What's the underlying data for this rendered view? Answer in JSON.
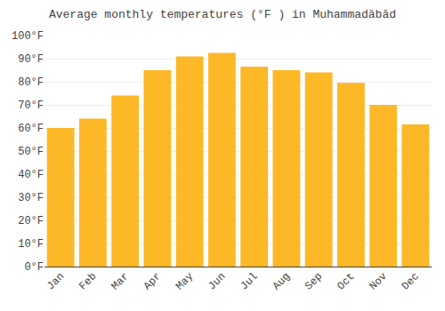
{
  "chart_data": {
    "type": "bar",
    "title": "Average monthly temperatures (°F ) in Muhammadābād",
    "categories": [
      "Jan",
      "Feb",
      "Mar",
      "Apr",
      "May",
      "Jun",
      "Jul",
      "Aug",
      "Sep",
      "Oct",
      "Nov",
      "Dec"
    ],
    "values": [
      60,
      64,
      74,
      85,
      91,
      92.5,
      86.5,
      85,
      84,
      79.5,
      70,
      61.5
    ],
    "color": "#FDB827",
    "ylim": [
      0,
      100
    ],
    "yticks": [
      {
        "value": 0,
        "label": "0°F"
      },
      {
        "value": 10,
        "label": "10°F"
      },
      {
        "value": 20,
        "label": "20°F"
      },
      {
        "value": 30,
        "label": "30°F"
      },
      {
        "value": 40,
        "label": "40°F"
      },
      {
        "value": 50,
        "label": "50°F"
      },
      {
        "value": 60,
        "label": "60°F"
      },
      {
        "value": 70,
        "label": "70°F"
      },
      {
        "value": 80,
        "label": "80°F"
      },
      {
        "value": 90,
        "label": "90°F"
      },
      {
        "value": 100,
        "label": "100°F"
      }
    ],
    "grid": true
  }
}
